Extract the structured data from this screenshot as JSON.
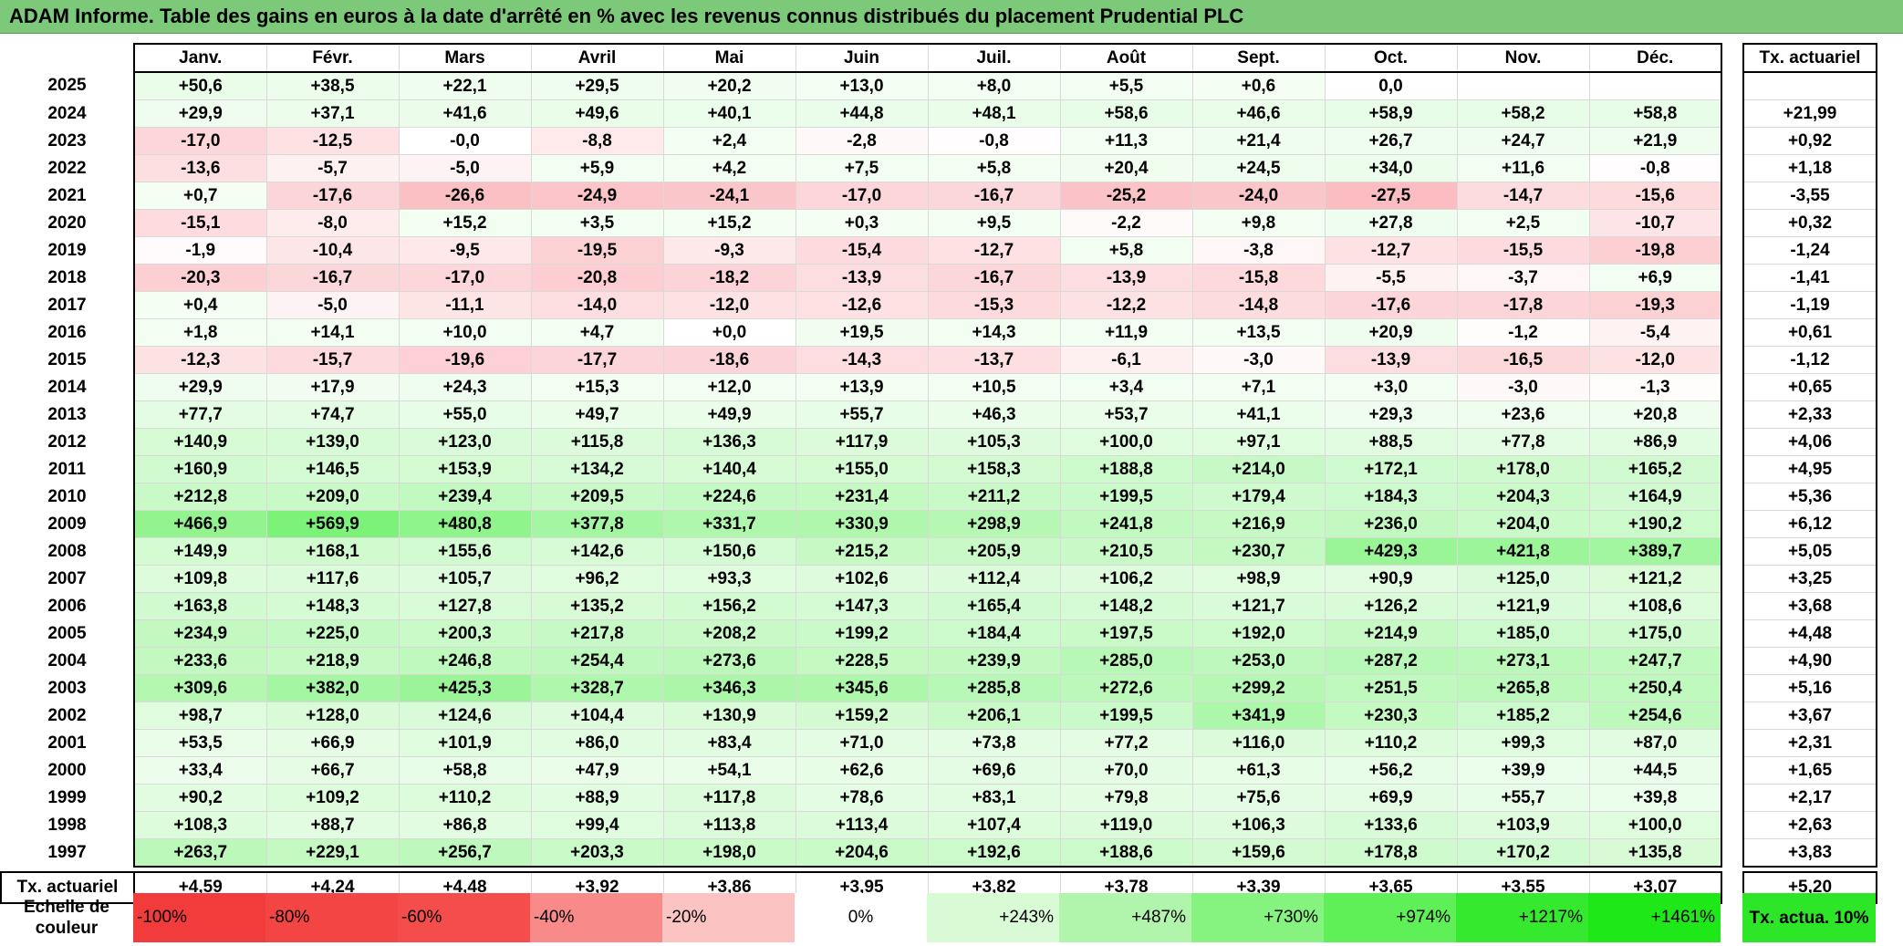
{
  "title": "ADAM Informe. Table des gains en euros à la date d'arrêté en % avec les revenus connus distribués du placement Prudential PLC",
  "months": [
    "Janv.",
    "Févr.",
    "Mars",
    "Avril",
    "Mai",
    "Juin",
    "Juil.",
    "Août",
    "Sept.",
    "Oct.",
    "Nov.",
    "Déc."
  ],
  "annual_header": "Tx. actuariel",
  "rows": [
    {
      "year": "2025",
      "cells": [
        "+50,6",
        "+38,5",
        "+22,1",
        "+29,5",
        "+20,2",
        "+13,0",
        "+8,0",
        "+5,5",
        "+0,6",
        "0,0",
        "",
        ""
      ],
      "annual": ""
    },
    {
      "year": "2024",
      "cells": [
        "+29,9",
        "+37,1",
        "+41,6",
        "+49,6",
        "+40,1",
        "+44,8",
        "+48,1",
        "+58,6",
        "+46,6",
        "+58,9",
        "+58,2",
        "+58,8"
      ],
      "annual": "+21,99"
    },
    {
      "year": "2023",
      "cells": [
        "-17,0",
        "-12,5",
        "-0,0",
        "-8,8",
        "+2,4",
        "-2,8",
        "-0,8",
        "+11,3",
        "+21,4",
        "+26,7",
        "+24,7",
        "+21,9"
      ],
      "annual": "+0,92"
    },
    {
      "year": "2022",
      "cells": [
        "-13,6",
        "-5,7",
        "-5,0",
        "+5,9",
        "+4,2",
        "+7,5",
        "+5,8",
        "+20,4",
        "+24,5",
        "+34,0",
        "+11,6",
        "-0,8"
      ],
      "annual": "+1,18"
    },
    {
      "year": "2021",
      "cells": [
        "+0,7",
        "-17,6",
        "-26,6",
        "-24,9",
        "-24,1",
        "-17,0",
        "-16,7",
        "-25,2",
        "-24,0",
        "-27,5",
        "-14,7",
        "-15,6"
      ],
      "annual": "-3,55"
    },
    {
      "year": "2020",
      "cells": [
        "-15,1",
        "-8,0",
        "+15,2",
        "+3,5",
        "+15,2",
        "+0,3",
        "+9,5",
        "-2,2",
        "+9,8",
        "+27,8",
        "+2,5",
        "-10,7"
      ],
      "annual": "+0,32"
    },
    {
      "year": "2019",
      "cells": [
        "-1,9",
        "-10,4",
        "-9,5",
        "-19,5",
        "-9,3",
        "-15,4",
        "-12,7",
        "+5,8",
        "-3,8",
        "-12,7",
        "-15,5",
        "-19,8"
      ],
      "annual": "-1,24"
    },
    {
      "year": "2018",
      "cells": [
        "-20,3",
        "-16,7",
        "-17,0",
        "-20,8",
        "-18,2",
        "-13,9",
        "-16,7",
        "-13,9",
        "-15,8",
        "-5,5",
        "-3,7",
        "+6,9"
      ],
      "annual": "-1,41"
    },
    {
      "year": "2017",
      "cells": [
        "+0,4",
        "-5,0",
        "-11,1",
        "-14,0",
        "-12,0",
        "-12,6",
        "-15,3",
        "-12,2",
        "-14,8",
        "-17,6",
        "-17,8",
        "-19,3"
      ],
      "annual": "-1,19"
    },
    {
      "year": "2016",
      "cells": [
        "+1,8",
        "+14,1",
        "+10,0",
        "+4,7",
        "+0,0",
        "+19,5",
        "+14,3",
        "+11,9",
        "+13,5",
        "+20,9",
        "-1,2",
        "-5,4"
      ],
      "annual": "+0,61"
    },
    {
      "year": "2015",
      "cells": [
        "-12,3",
        "-15,7",
        "-19,6",
        "-17,7",
        "-18,6",
        "-14,3",
        "-13,7",
        "-6,1",
        "-3,0",
        "-13,9",
        "-16,5",
        "-12,0"
      ],
      "annual": "-1,12"
    },
    {
      "year": "2014",
      "cells": [
        "+29,9",
        "+17,9",
        "+24,3",
        "+15,3",
        "+12,0",
        "+13,9",
        "+10,5",
        "+3,4",
        "+7,1",
        "+3,0",
        "-3,0",
        "-1,3"
      ],
      "annual": "+0,65"
    },
    {
      "year": "2013",
      "cells": [
        "+77,7",
        "+74,7",
        "+55,0",
        "+49,7",
        "+49,9",
        "+55,7",
        "+46,3",
        "+53,7",
        "+41,1",
        "+29,3",
        "+23,6",
        "+20,8"
      ],
      "annual": "+2,33"
    },
    {
      "year": "2012",
      "cells": [
        "+140,9",
        "+139,0",
        "+123,0",
        "+115,8",
        "+136,3",
        "+117,9",
        "+105,3",
        "+100,0",
        "+97,1",
        "+88,5",
        "+77,8",
        "+86,9"
      ],
      "annual": "+4,06"
    },
    {
      "year": "2011",
      "cells": [
        "+160,9",
        "+146,5",
        "+153,9",
        "+134,2",
        "+140,4",
        "+155,0",
        "+158,3",
        "+188,8",
        "+214,0",
        "+172,1",
        "+178,0",
        "+165,2"
      ],
      "annual": "+4,95"
    },
    {
      "year": "2010",
      "cells": [
        "+212,8",
        "+209,0",
        "+239,4",
        "+209,5",
        "+224,6",
        "+231,4",
        "+211,2",
        "+199,5",
        "+179,4",
        "+184,3",
        "+204,3",
        "+164,9"
      ],
      "annual": "+5,36"
    },
    {
      "year": "2009",
      "cells": [
        "+466,9",
        "+569,9",
        "+480,8",
        "+377,8",
        "+331,7",
        "+330,9",
        "+298,9",
        "+241,8",
        "+216,9",
        "+236,0",
        "+204,0",
        "+190,2"
      ],
      "annual": "+6,12"
    },
    {
      "year": "2008",
      "cells": [
        "+149,9",
        "+168,1",
        "+155,6",
        "+142,6",
        "+150,6",
        "+215,2",
        "+205,9",
        "+210,5",
        "+230,7",
        "+429,3",
        "+421,8",
        "+389,7"
      ],
      "annual": "+5,05"
    },
    {
      "year": "2007",
      "cells": [
        "+109,8",
        "+117,6",
        "+105,7",
        "+96,2",
        "+93,3",
        "+102,6",
        "+112,4",
        "+106,2",
        "+98,9",
        "+90,9",
        "+125,0",
        "+121,2"
      ],
      "annual": "+3,25"
    },
    {
      "year": "2006",
      "cells": [
        "+163,8",
        "+148,3",
        "+127,8",
        "+135,2",
        "+156,2",
        "+147,3",
        "+165,4",
        "+148,2",
        "+121,7",
        "+126,2",
        "+121,9",
        "+108,6"
      ],
      "annual": "+3,68"
    },
    {
      "year": "2005",
      "cells": [
        "+234,9",
        "+225,0",
        "+200,3",
        "+217,8",
        "+208,2",
        "+199,2",
        "+184,4",
        "+197,5",
        "+192,0",
        "+214,9",
        "+185,0",
        "+175,0"
      ],
      "annual": "+4,48"
    },
    {
      "year": "2004",
      "cells": [
        "+233,6",
        "+218,9",
        "+246,8",
        "+254,4",
        "+273,6",
        "+228,5",
        "+239,9",
        "+285,0",
        "+253,0",
        "+287,2",
        "+273,1",
        "+247,7"
      ],
      "annual": "+4,90"
    },
    {
      "year": "2003",
      "cells": [
        "+309,6",
        "+382,0",
        "+425,3",
        "+328,7",
        "+346,3",
        "+345,6",
        "+285,8",
        "+272,6",
        "+299,2",
        "+251,5",
        "+265,8",
        "+250,4"
      ],
      "annual": "+5,16"
    },
    {
      "year": "2002",
      "cells": [
        "+98,7",
        "+128,0",
        "+124,6",
        "+104,4",
        "+130,9",
        "+159,2",
        "+206,1",
        "+199,5",
        "+341,9",
        "+230,3",
        "+185,2",
        "+254,6"
      ],
      "annual": "+3,67"
    },
    {
      "year": "2001",
      "cells": [
        "+53,5",
        "+66,9",
        "+101,9",
        "+86,0",
        "+83,4",
        "+71,0",
        "+73,8",
        "+77,2",
        "+116,0",
        "+110,2",
        "+99,3",
        "+87,0"
      ],
      "annual": "+2,31"
    },
    {
      "year": "2000",
      "cells": [
        "+33,4",
        "+66,7",
        "+58,8",
        "+47,9",
        "+54,1",
        "+62,6",
        "+69,6",
        "+70,0",
        "+61,3",
        "+56,2",
        "+39,9",
        "+44,5"
      ],
      "annual": "+1,65"
    },
    {
      "year": "1999",
      "cells": [
        "+90,2",
        "+109,2",
        "+110,2",
        "+88,9",
        "+117,8",
        "+78,6",
        "+83,1",
        "+79,8",
        "+75,6",
        "+69,9",
        "+55,7",
        "+39,8"
      ],
      "annual": "+2,17"
    },
    {
      "year": "1998",
      "cells": [
        "+108,3",
        "+88,7",
        "+86,8",
        "+99,4",
        "+113,8",
        "+113,4",
        "+107,4",
        "+119,0",
        "+106,3",
        "+133,6",
        "+103,9",
        "+100,0"
      ],
      "annual": "+2,63"
    },
    {
      "year": "1997",
      "cells": [
        "+263,7",
        "+229,1",
        "+256,7",
        "+203,3",
        "+198,0",
        "+204,6",
        "+192,6",
        "+188,6",
        "+159,6",
        "+178,8",
        "+170,2",
        "+135,8"
      ],
      "annual": "+3,83"
    }
  ],
  "totals": {
    "label": "Tx. actuariel",
    "cells": [
      "+4,59",
      "+4,24",
      "+4,48",
      "+3,92",
      "+3,86",
      "+3,95",
      "+3,82",
      "+3,78",
      "+3,39",
      "+3,65",
      "+3,55",
      "+3,07"
    ],
    "annual": "+5,20"
  },
  "legend": {
    "label": "Echelle de couleur",
    "swatches": [
      {
        "text": "-100%",
        "color": "#f23b3b"
      },
      {
        "text": "-80%",
        "color": "#f44545"
      },
      {
        "text": "-60%",
        "color": "#f54c4c"
      },
      {
        "text": "-40%",
        "color": "#f88a8a"
      },
      {
        "text": "-20%",
        "color": "#fcc3c3"
      },
      {
        "text": "0%",
        "color": "#ffffff"
      },
      {
        "text": "+243%",
        "color": "#d8fbd6"
      },
      {
        "text": "+487%",
        "color": "#b1f5ad"
      },
      {
        "text": "+730%",
        "color": "#86f27f"
      },
      {
        "text": "+974%",
        "color": "#5ff058"
      },
      {
        "text": "+1217%",
        "color": "#35ea2e"
      },
      {
        "text": "+1461%",
        "color": "#1ee817"
      }
    ],
    "annual_swatch": {
      "text": "Tx. actua. 10%",
      "color": "#2ee628"
    }
  },
  "colors": {
    "title_bg": "#7cc97a",
    "negative_max": "#f23b3b",
    "positive_max": "#1ee817",
    "neutral": "#ffffff"
  }
}
